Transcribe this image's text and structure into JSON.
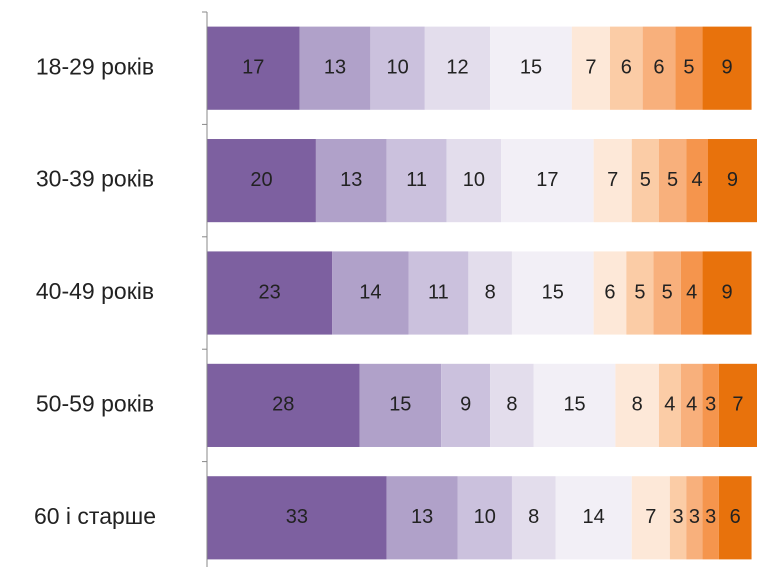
{
  "chart_data": {
    "type": "stacked-bar",
    "orientation": "horizontal",
    "categories": [
      "18-29 років",
      "30-39 років",
      "40-49 років",
      "50-59 років",
      "60 і старше"
    ],
    "xlim": [
      0,
      101
    ],
    "series": [
      {
        "color": "#7d60a0",
        "values": [
          17,
          20,
          23,
          28,
          33
        ]
      },
      {
        "color": "#b0a1c9",
        "values": [
          13,
          13,
          14,
          15,
          13
        ]
      },
      {
        "color": "#cbc1dd",
        "values": [
          10,
          11,
          11,
          9,
          10
        ]
      },
      {
        "color": "#e3ddec",
        "values": [
          12,
          10,
          8,
          8,
          8
        ]
      },
      {
        "color": "#f2eff6",
        "values": [
          15,
          17,
          15,
          15,
          14
        ]
      },
      {
        "color": "#fde8d8",
        "values": [
          7,
          7,
          6,
          8,
          7
        ]
      },
      {
        "color": "#fbcca6",
        "values": [
          6,
          5,
          5,
          4,
          3
        ]
      },
      {
        "color": "#f8b07c",
        "values": [
          6,
          5,
          5,
          4,
          3
        ]
      },
      {
        "color": "#f5954d",
        "values": [
          5,
          4,
          4,
          3,
          3
        ]
      },
      {
        "color": "#e8720c",
        "values": [
          9,
          9,
          9,
          7,
          6
        ]
      }
    ]
  }
}
